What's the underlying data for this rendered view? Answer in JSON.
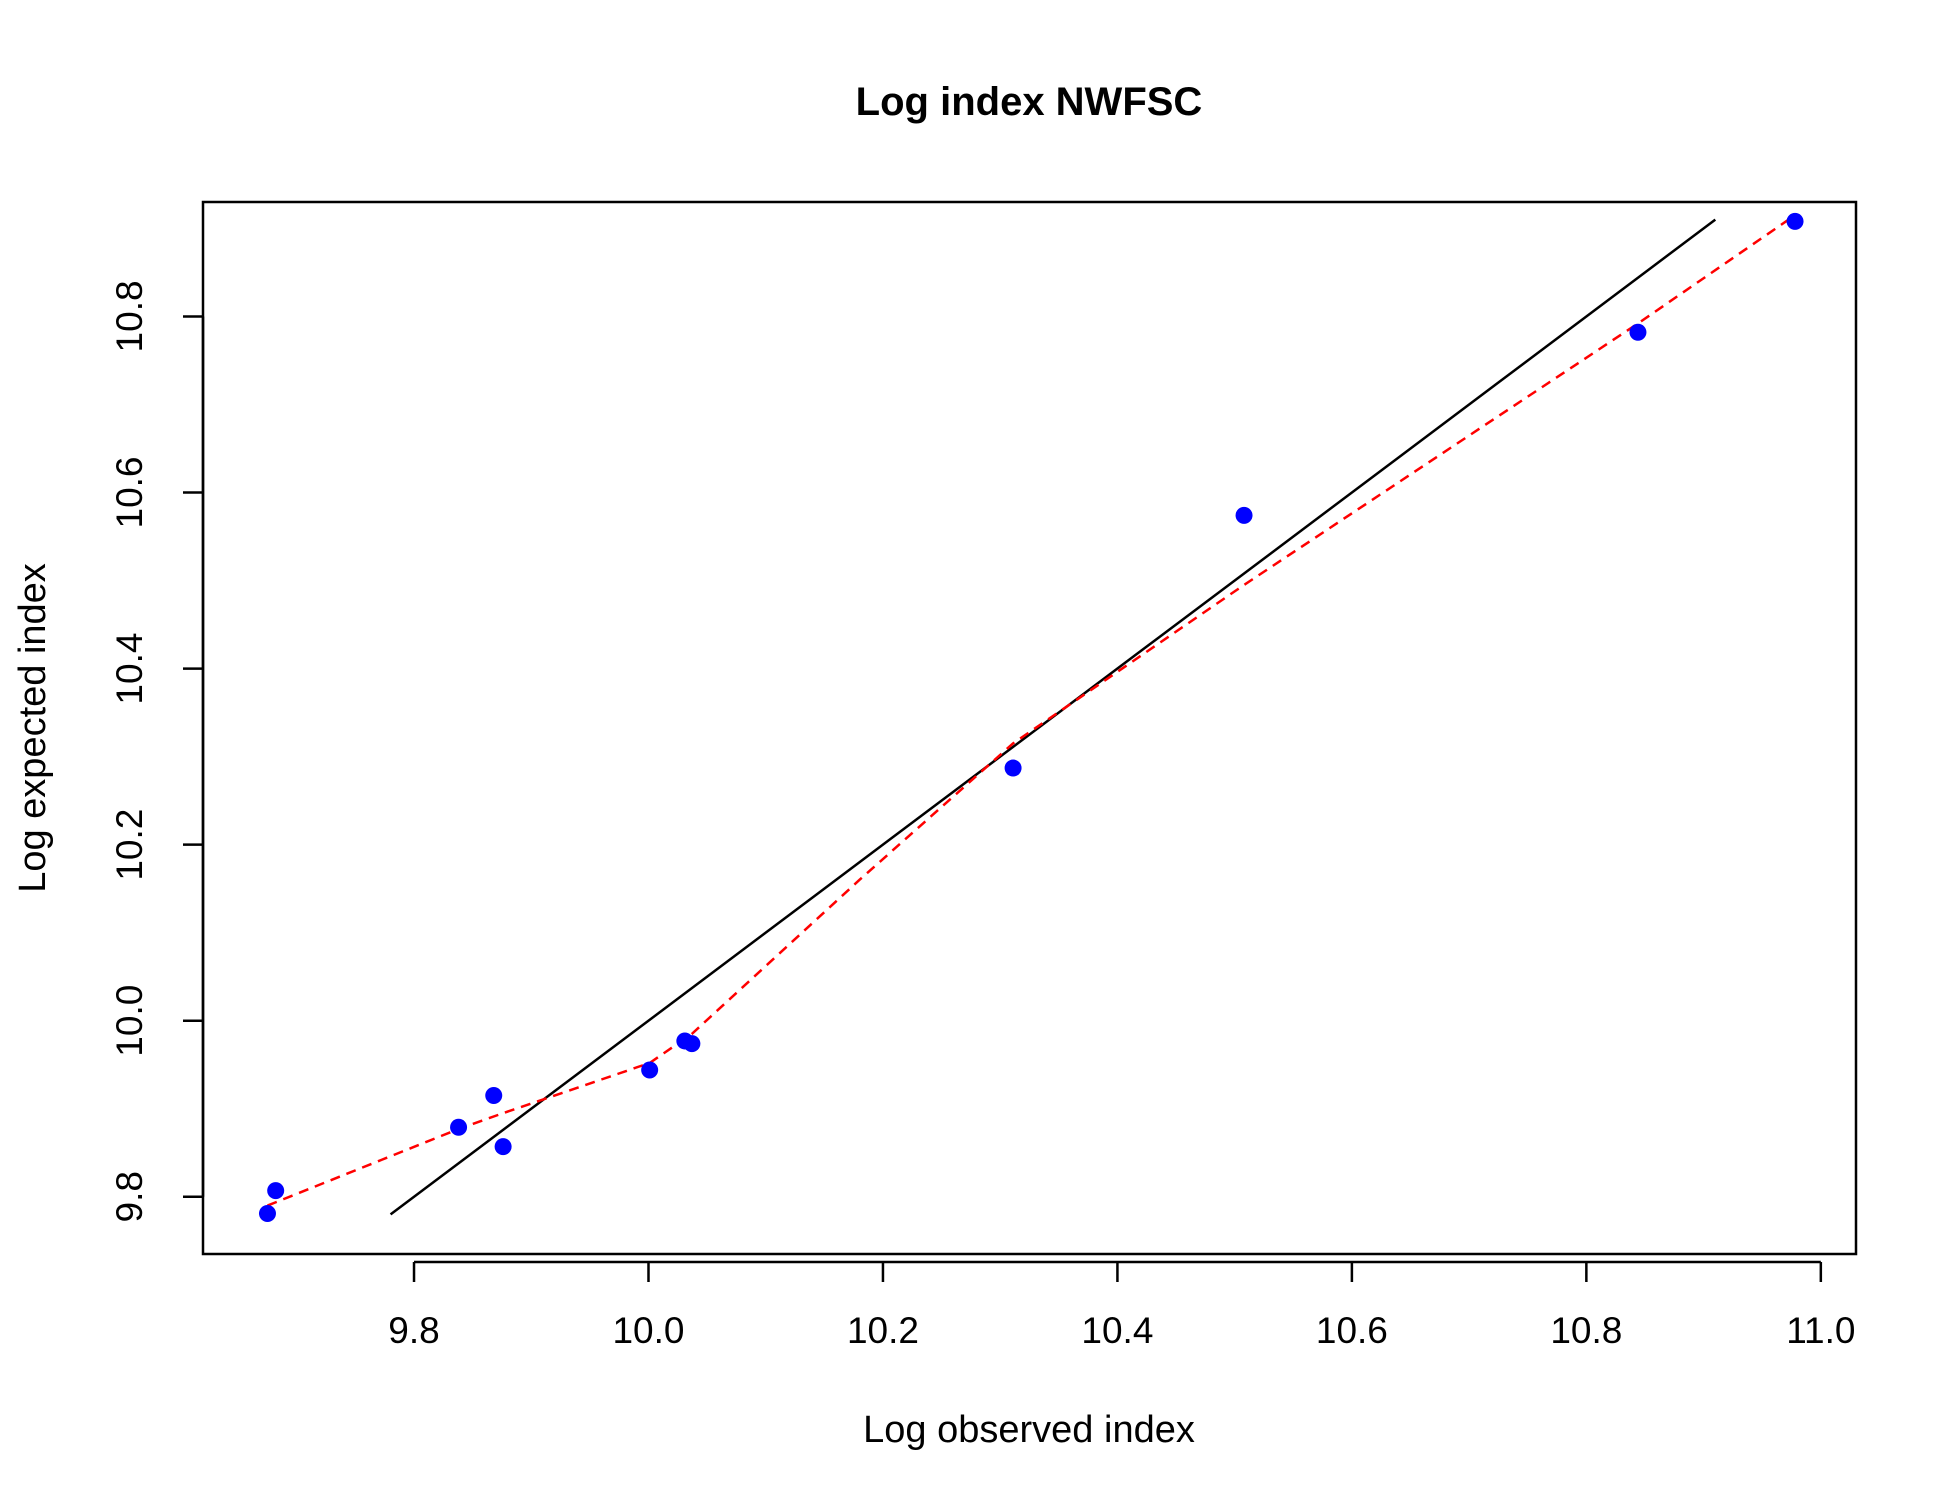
{
  "chart_data": {
    "type": "scatter",
    "title": "Log index NWFSC",
    "xlabel": "Log observed index",
    "ylabel": "Log expected index",
    "xlim": [
      9.62,
      11.03
    ],
    "ylim": [
      9.735,
      10.93
    ],
    "xticks": [
      9.8,
      10.0,
      10.2,
      10.4,
      10.6,
      10.8,
      11.0
    ],
    "xtick_labels": [
      "9.8",
      "10.0",
      "10.2",
      "10.4",
      "10.6",
      "10.8",
      "11.0"
    ],
    "yticks": [
      9.8,
      10.0,
      10.2,
      10.4,
      10.6,
      10.8
    ],
    "ytick_labels": [
      "9.8",
      "10.0",
      "10.2",
      "10.4",
      "10.6",
      "10.8"
    ],
    "grid": false,
    "colors": {
      "points": "#0000FF",
      "identity_line": "#000000",
      "smoother": "#FF0000"
    },
    "points": {
      "x": [
        9.675,
        9.682,
        9.838,
        9.868,
        9.876,
        10.001,
        10.031,
        10.037,
        10.311,
        10.508,
        10.844,
        10.978
      ],
      "y": [
        9.781,
        9.807,
        9.879,
        9.915,
        9.857,
        9.944,
        9.977,
        9.974,
        10.287,
        10.574,
        10.782,
        10.908
      ]
    },
    "identity_line": {
      "x": [
        9.78,
        10.91
      ],
      "y": [
        9.78,
        10.91
      ]
    },
    "smoother": {
      "x": [
        9.675,
        9.838,
        9.876,
        10.001,
        10.037,
        10.18,
        10.311,
        10.508,
        10.844,
        10.978
      ],
      "y": [
        9.79,
        9.877,
        9.895,
        9.952,
        9.985,
        10.16,
        10.315,
        10.495,
        10.792,
        10.915
      ]
    }
  }
}
